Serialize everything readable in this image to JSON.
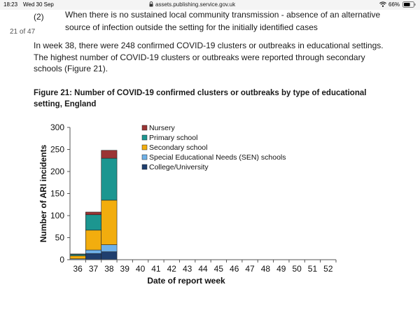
{
  "statusbar": {
    "time": "18:23",
    "date": "Wed 30 Sep",
    "url": "assets.publishing.service.gov.uk",
    "battery": "66%",
    "icons": [
      "lock-icon",
      "wifi-icon",
      "battery-icon"
    ]
  },
  "page_counter": "21 of 47",
  "list": {
    "marker": "(2)",
    "line1": "When there is no sustained local community transmission - absence of an alternative",
    "line2": "source of infection outside the setting for the initially identified cases"
  },
  "paragraph": "In week 38, there were 248 confirmed COVID-19 clusters or outbreaks in educational settings. The highest number of COVID-19 clusters or outbreaks were reported through secondary schools (Figure 21).",
  "figure_title": "Figure 21: Number of COVID-19 confirmed clusters or outbreaks by type of educational setting, England",
  "chart_data": {
    "type": "bar",
    "stacked": true,
    "categories": [
      "36",
      "37",
      "38",
      "39",
      "40",
      "41",
      "42",
      "43",
      "44",
      "45",
      "46",
      "47",
      "48",
      "49",
      "50",
      "51",
      "52"
    ],
    "series": [
      {
        "name": "College/University",
        "color": "#1f3f6e",
        "values": [
          0,
          14,
          18,
          0,
          0,
          0,
          0,
          0,
          0,
          0,
          0,
          0,
          0,
          0,
          0,
          0,
          0
        ]
      },
      {
        "name": "Special Educational Needs (SEN) schools",
        "color": "#6fb1e8",
        "values": [
          2,
          8,
          16,
          0,
          0,
          0,
          0,
          0,
          0,
          0,
          0,
          0,
          0,
          0,
          0,
          0,
          0
        ]
      },
      {
        "name": "Secondary school",
        "color": "#f2ad0e",
        "values": [
          7,
          45,
          101,
          0,
          0,
          0,
          0,
          0,
          0,
          0,
          0,
          0,
          0,
          0,
          0,
          0,
          0
        ]
      },
      {
        "name": "Primary school",
        "color": "#1c9690",
        "values": [
          3,
          35,
          95,
          0,
          0,
          0,
          0,
          0,
          0,
          0,
          0,
          0,
          0,
          0,
          0,
          0,
          0
        ]
      },
      {
        "name": "Nursery",
        "color": "#9a3434",
        "values": [
          1,
          6,
          18,
          0,
          0,
          0,
          0,
          0,
          0,
          0,
          0,
          0,
          0,
          0,
          0,
          0,
          0
        ]
      }
    ],
    "legend_order": [
      "Nursery",
      "Primary school",
      "Secondary school",
      "Special Educational Needs (SEN) schools",
      "College/University"
    ],
    "legend_position": "top-left inside plot",
    "xlabel": "Date of report week",
    "ylabel": "Number of ARI incidents",
    "ylim": [
      0,
      300
    ],
    "yticks": [
      0,
      50,
      100,
      150,
      200,
      250,
      300
    ],
    "grid": false
  }
}
